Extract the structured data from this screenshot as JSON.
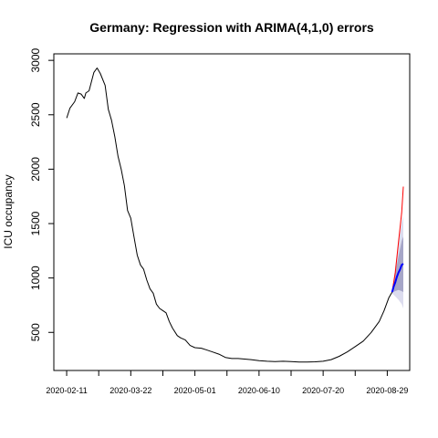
{
  "chart_data": {
    "type": "line",
    "title": "Germany: Regression with ARIMA(4,1,0) errors",
    "xlabel": "",
    "ylabel": "ICU occupancy",
    "x_tick_labels": [
      "2020-02-11",
      "2020-03-22",
      "2020-05-01",
      "2020-06-10",
      "2020-07-20",
      "2020-08-29"
    ],
    "y_ticks": [
      500,
      1000,
      1500,
      2000,
      2500,
      3000
    ],
    "xlim": [
      "2020-02-03",
      "2020-09-12"
    ],
    "ylim": [
      150,
      3060
    ],
    "grid": false,
    "series": [
      {
        "role": "observed",
        "color": "#000000",
        "points": [
          [
            "2020-02-11",
            2470
          ],
          [
            "2020-02-13",
            2560
          ],
          [
            "2020-02-16",
            2620
          ],
          [
            "2020-02-18",
            2700
          ],
          [
            "2020-02-20",
            2690
          ],
          [
            "2020-02-22",
            2650
          ],
          [
            "2020-02-23",
            2700
          ],
          [
            "2020-02-25",
            2720
          ],
          [
            "2020-02-28",
            2890
          ],
          [
            "2020-03-01",
            2930
          ],
          [
            "2020-03-03",
            2880
          ],
          [
            "2020-03-06",
            2770
          ],
          [
            "2020-03-08",
            2550
          ],
          [
            "2020-03-10",
            2450
          ],
          [
            "2020-03-12",
            2300
          ],
          [
            "2020-03-14",
            2120
          ],
          [
            "2020-03-16",
            2000
          ],
          [
            "2020-03-18",
            1850
          ],
          [
            "2020-03-20",
            1620
          ],
          [
            "2020-03-22",
            1550
          ],
          [
            "2020-03-24",
            1380
          ],
          [
            "2020-03-26",
            1210
          ],
          [
            "2020-03-28",
            1120
          ],
          [
            "2020-03-30",
            1080
          ],
          [
            "2020-04-01",
            980
          ],
          [
            "2020-04-03",
            900
          ],
          [
            "2020-04-05",
            860
          ],
          [
            "2020-04-07",
            760
          ],
          [
            "2020-04-09",
            720
          ],
          [
            "2020-04-11",
            700
          ],
          [
            "2020-04-13",
            680
          ],
          [
            "2020-04-15",
            600
          ],
          [
            "2020-04-17",
            540
          ],
          [
            "2020-04-20",
            470
          ],
          [
            "2020-04-22",
            450
          ],
          [
            "2020-04-25",
            430
          ],
          [
            "2020-04-28",
            380
          ],
          [
            "2020-05-01",
            360
          ],
          [
            "2020-05-05",
            355
          ],
          [
            "2020-05-08",
            340
          ],
          [
            "2020-05-12",
            320
          ],
          [
            "2020-05-16",
            300
          ],
          [
            "2020-05-20",
            270
          ],
          [
            "2020-05-24",
            260
          ],
          [
            "2020-05-28",
            260
          ],
          [
            "2020-06-01",
            255
          ],
          [
            "2020-06-05",
            250
          ],
          [
            "2020-06-10",
            240
          ],
          [
            "2020-06-15",
            235
          ],
          [
            "2020-06-20",
            232
          ],
          [
            "2020-06-25",
            235
          ],
          [
            "2020-06-30",
            232
          ],
          [
            "2020-07-05",
            228
          ],
          [
            "2020-07-10",
            228
          ],
          [
            "2020-07-15",
            230
          ],
          [
            "2020-07-20",
            235
          ],
          [
            "2020-07-25",
            250
          ],
          [
            "2020-07-30",
            280
          ],
          [
            "2020-08-04",
            320
          ],
          [
            "2020-08-09",
            370
          ],
          [
            "2020-08-14",
            420
          ],
          [
            "2020-08-19",
            500
          ],
          [
            "2020-08-24",
            600
          ],
          [
            "2020-08-27",
            700
          ],
          [
            "2020-08-30",
            820
          ],
          [
            "2020-09-01",
            870
          ]
        ]
      },
      {
        "role": "forecast",
        "color": "#0000ff",
        "points": [
          [
            "2020-09-01",
            870
          ],
          [
            "2020-09-02",
            920
          ],
          [
            "2020-09-03",
            960
          ],
          [
            "2020-09-04",
            1010
          ],
          [
            "2020-09-05",
            1050
          ],
          [
            "2020-09-06",
            1080
          ],
          [
            "2020-09-07",
            1120
          ],
          [
            "2020-09-08",
            1130
          ]
        ]
      },
      {
        "role": "reference",
        "color": "#ff0000",
        "points": [
          [
            "2020-09-01",
            870
          ],
          [
            "2020-09-03",
            1050
          ],
          [
            "2020-09-05",
            1330
          ],
          [
            "2020-09-07",
            1600
          ],
          [
            "2020-09-08",
            1840
          ]
        ]
      }
    ],
    "interval_95": {
      "color": "#dcdcee",
      "x": [
        "2020-09-01",
        "2020-09-03",
        "2020-09-05",
        "2020-09-07",
        "2020-09-08"
      ],
      "lower": [
        860,
        830,
        800,
        760,
        720
      ],
      "upper": [
        880,
        1110,
        1320,
        1510,
        1570
      ]
    },
    "interval_80": {
      "color": "#a6a6c8",
      "x": [
        "2020-09-01",
        "2020-09-03",
        "2020-09-05",
        "2020-09-07",
        "2020-09-08"
      ],
      "lower": [
        865,
        880,
        890,
        880,
        870
      ],
      "upper": [
        875,
        1040,
        1200,
        1340,
        1380
      ]
    }
  }
}
